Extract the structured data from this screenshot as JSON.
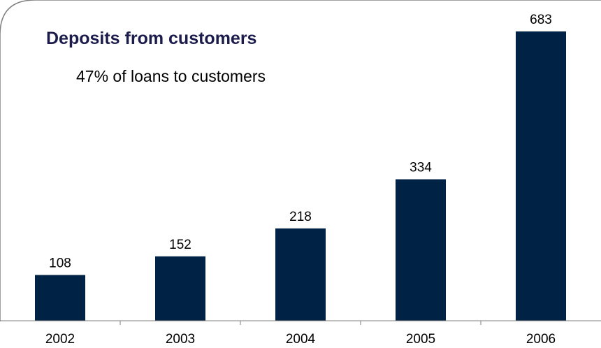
{
  "chart_data": {
    "type": "bar",
    "title": "Deposits from customers",
    "subtitle": "47% of loans to customers",
    "categories": [
      "2002",
      "2003",
      "2004",
      "2005",
      "2006"
    ],
    "values": [
      108,
      152,
      218,
      334,
      683
    ],
    "data_labels": [
      "108",
      "152",
      "218",
      "334",
      "683"
    ],
    "xlabel": "",
    "ylabel": "",
    "ylim": [
      0,
      683
    ],
    "grid": false,
    "legend": "none"
  },
  "colors": {
    "bar": "#002244",
    "title": "#1c1c4c",
    "axis": "#7f7f7f",
    "frame": "#808080"
  }
}
